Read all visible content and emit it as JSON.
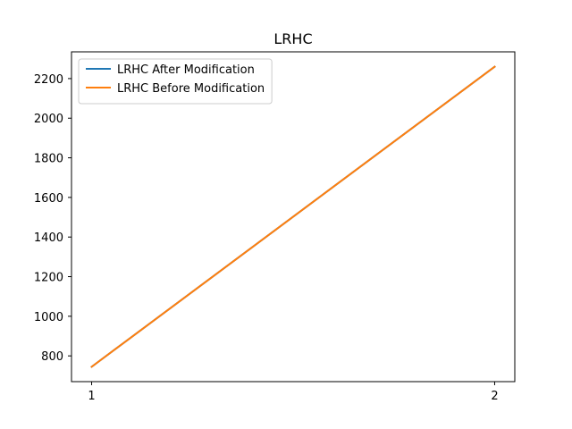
{
  "chart_data": {
    "type": "line",
    "title": "LRHC",
    "xlabel": "",
    "ylabel": "",
    "x": [
      1,
      2
    ],
    "x_ticks": [
      1,
      2
    ],
    "y_ticks": [
      800,
      1000,
      1200,
      1400,
      1600,
      1800,
      2000,
      2200
    ],
    "xlim": [
      0.95,
      2.05
    ],
    "ylim": [
      670,
      2335
    ],
    "grid": false,
    "legend_position": "upper left",
    "series": [
      {
        "name": "LRHC After Modification",
        "values": [
          745,
          2260
        ],
        "color": "#1f77b4"
      },
      {
        "name": "LRHC Before Modification",
        "values": [
          745,
          2260
        ],
        "color": "#ff7f0e"
      }
    ]
  }
}
